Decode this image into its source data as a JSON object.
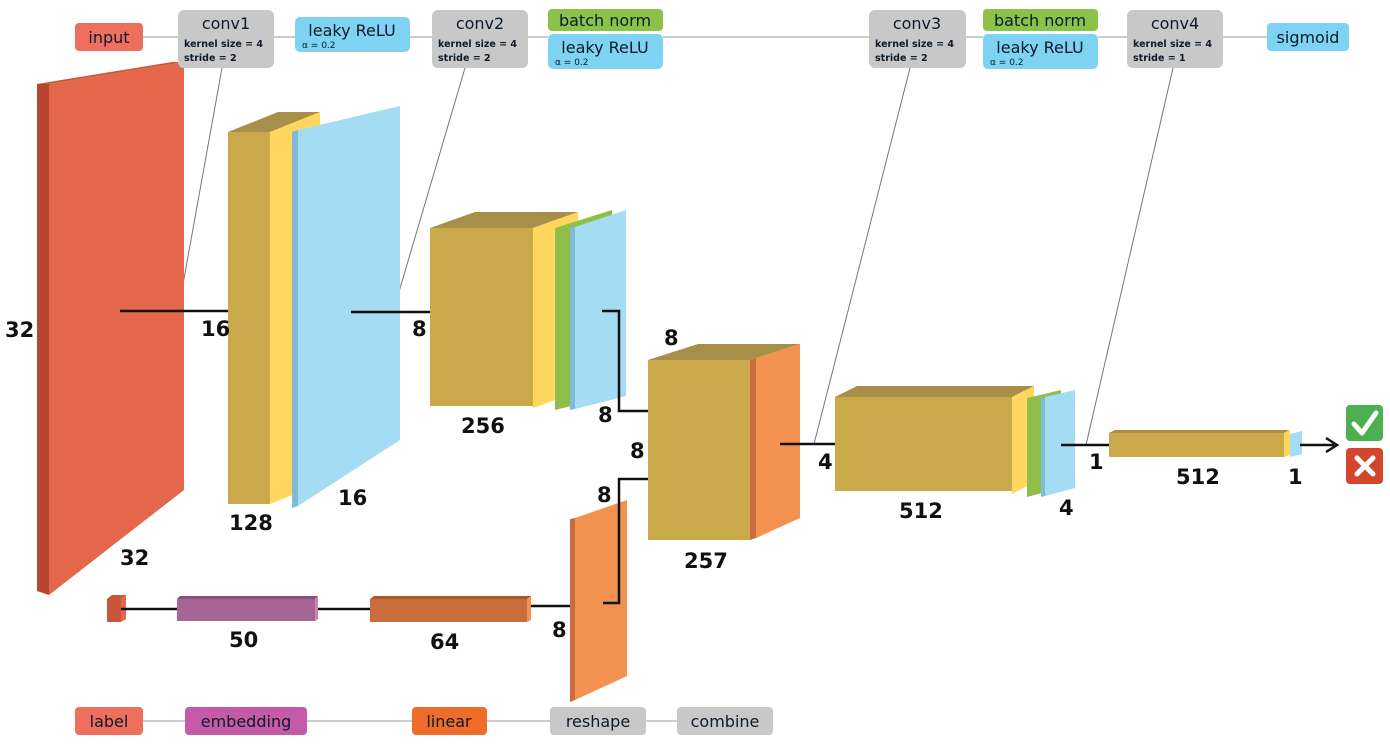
{
  "diagram": {
    "colors": {
      "input": "#e4664b",
      "conv": "#c9a94a",
      "batch_norm": "#8fbf4a",
      "leaky_relu": "#a4dcf4",
      "orange": "#f39150",
      "linear": "#c96d3c",
      "embedding": "#a66594",
      "gray_tag": "#c8c8c8",
      "check": "#4caf50",
      "cross": "#d2462d"
    },
    "top_tags": {
      "input": "input",
      "conv1": {
        "name": "conv1",
        "kernel": "kernel size = 4",
        "stride": "stride = 2"
      },
      "relu1": {
        "name": "leaky ReLU",
        "alpha": "α = 0.2"
      },
      "conv2": {
        "name": "conv2",
        "kernel": "kernel size = 4",
        "stride": "stride = 2"
      },
      "bn2": "batch norm",
      "relu2": {
        "name": "leaky ReLU",
        "alpha": "α = 0.2"
      },
      "conv3": {
        "name": "conv3",
        "kernel": "kernel size = 4",
        "stride": "stride = 2"
      },
      "bn3": "batch norm",
      "relu3": {
        "name": "leaky ReLU",
        "alpha": "α = 0.2"
      },
      "conv4": {
        "name": "conv4",
        "kernel": "kernel size = 4",
        "stride": "stride = 1"
      },
      "sigmoid": "sigmoid"
    },
    "bottom_tags": {
      "label": "label",
      "embedding": "embedding",
      "linear": "linear",
      "reshape": "reshape",
      "combine": "combine"
    },
    "dims": {
      "input_h": "32",
      "input_w": "32",
      "conv1_h": "16",
      "conv1_c": "128",
      "conv1_w": "16",
      "conv2_h": "8",
      "conv2_c": "256",
      "conv2_w": "8",
      "combine_d": "8",
      "combine_h": "8",
      "combine_c": "257",
      "reshape_h": "8",
      "reshape_w": "8",
      "conv3_h": "4",
      "conv3_c": "512",
      "conv3_w": "4",
      "conv4_h": "1",
      "conv4_c": "512",
      "conv4_w": "1",
      "embedding_n": "50",
      "linear_n": "64"
    }
  }
}
